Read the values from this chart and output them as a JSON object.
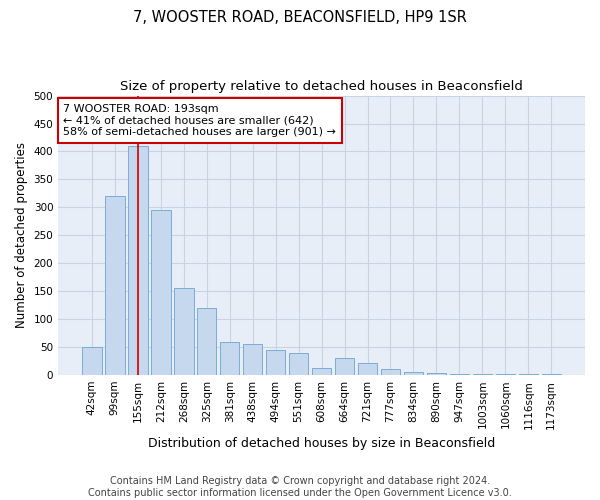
{
  "title": "7, WOOSTER ROAD, BEACONSFIELD, HP9 1SR",
  "subtitle": "Size of property relative to detached houses in Beaconsfield",
  "xlabel": "Distribution of detached houses by size in Beaconsfield",
  "ylabel": "Number of detached properties",
  "footer_line1": "Contains HM Land Registry data © Crown copyright and database right 2024.",
  "footer_line2": "Contains public sector information licensed under the Open Government Licence v3.0.",
  "categories": [
    "42sqm",
    "99sqm",
    "155sqm",
    "212sqm",
    "268sqm",
    "325sqm",
    "381sqm",
    "438sqm",
    "494sqm",
    "551sqm",
    "608sqm",
    "664sqm",
    "721sqm",
    "777sqm",
    "834sqm",
    "890sqm",
    "947sqm",
    "1003sqm",
    "1060sqm",
    "1116sqm",
    "1173sqm"
  ],
  "values": [
    50,
    320,
    410,
    295,
    155,
    120,
    60,
    55,
    45,
    40,
    12,
    30,
    22,
    10,
    5,
    3,
    2,
    2,
    2,
    2,
    2
  ],
  "bar_color": "#c5d8ee",
  "bar_edge_color": "#7aadd4",
  "grid_color": "#c8d4e4",
  "background_color": "#e8eef8",
  "annotation_box_color": "#cc0000",
  "property_line_color": "#cc0000",
  "property_bin_index": 2,
  "annotation_text": "7 WOOSTER ROAD: 193sqm\n← 41% of detached houses are smaller (642)\n58% of semi-detached houses are larger (901) →",
  "ylim": [
    0,
    500
  ],
  "yticks": [
    0,
    50,
    100,
    150,
    200,
    250,
    300,
    350,
    400,
    450,
    500
  ],
  "title_fontsize": 10.5,
  "subtitle_fontsize": 9.5,
  "xlabel_fontsize": 9,
  "ylabel_fontsize": 8.5,
  "tick_fontsize": 7.5,
  "annotation_fontsize": 8,
  "footer_fontsize": 7
}
